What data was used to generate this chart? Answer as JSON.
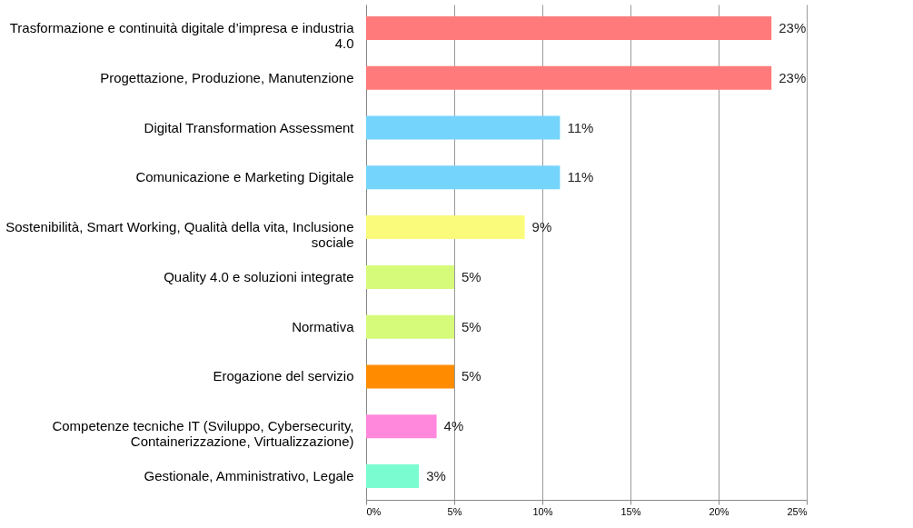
{
  "chart_data": {
    "type": "bar",
    "orientation": "horizontal",
    "categories": [
      "Trasformazione e continuità digitale d’impresa e industria 4.0",
      "Progettazione, Produzione, Manutenzione",
      "Digital Transformation Assessment",
      "Comunicazione e Marketing Digitale",
      "Sostenibilità, Smart Working, Qualità della vita, Inclusione sociale",
      "Quality 4.0 e soluzioni integrate",
      "Normativa",
      "Erogazione del servizio",
      "Competenze tecniche IT (Sviluppo, Cybersecurity, Containerizzazione, Virtualizzazione)",
      "Gestionale, Amministrativo, Legale"
    ],
    "values": [
      23,
      23,
      11,
      11,
      9,
      5,
      5,
      5,
      4,
      3
    ],
    "value_labels": [
      "23%",
      "23%",
      "11%",
      "11%",
      "9%",
      "5%",
      "5%",
      "5%",
      "4%",
      "3%"
    ],
    "colors": [
      "#ff7b7b",
      "#ff7b7b",
      "#75d4fb",
      "#75d4fb",
      "#fbfb7b",
      "#d6fb7b",
      "#d6fb7b",
      "#ff8c00",
      "#ff88dd",
      "#7bfbd0"
    ],
    "xlim": [
      0,
      25
    ],
    "xticks": [
      {
        "value": 0,
        "label": "0%"
      },
      {
        "value": 5,
        "label": "5%"
      },
      {
        "value": 10,
        "label": "10%"
      },
      {
        "value": 15,
        "label": "15%"
      },
      {
        "value": 20,
        "label": "20%"
      },
      {
        "value": 25,
        "label": "25%"
      }
    ],
    "grid": "x"
  }
}
